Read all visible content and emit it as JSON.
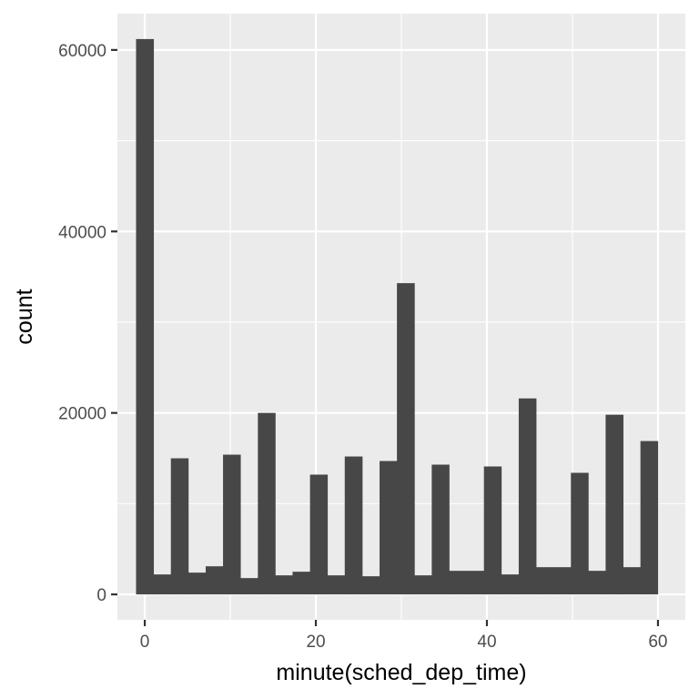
{
  "chart_data": {
    "type": "bar",
    "title": "",
    "xlabel": "minute(sched_dep_time)",
    "ylabel": "count",
    "xlim": [
      -3.2,
      63.2
    ],
    "ylim": [
      -2800,
      64000
    ],
    "x_ticks": [
      0,
      20,
      40,
      60
    ],
    "y_ticks": [
      0,
      20000,
      40000,
      60000
    ],
    "grid": true,
    "bin_width": 2.03,
    "bins": [
      {
        "x_start": -1.02,
        "x_end": 1.02,
        "count": 61200
      },
      {
        "x_start": 1.02,
        "x_end": 3.05,
        "count": 2200
      },
      {
        "x_start": 3.05,
        "x_end": 5.08,
        "count": 15000
      },
      {
        "x_start": 5.08,
        "x_end": 7.12,
        "count": 2400
      },
      {
        "x_start": 7.12,
        "x_end": 9.15,
        "count": 3100
      },
      {
        "x_start": 9.15,
        "x_end": 11.18,
        "count": 15400
      },
      {
        "x_start": 11.18,
        "x_end": 13.22,
        "count": 1800
      },
      {
        "x_start": 13.22,
        "x_end": 15.25,
        "count": 20000
      },
      {
        "x_start": 15.25,
        "x_end": 17.28,
        "count": 2100
      },
      {
        "x_start": 17.28,
        "x_end": 19.32,
        "count": 2500
      },
      {
        "x_start": 19.32,
        "x_end": 21.35,
        "count": 13200
      },
      {
        "x_start": 21.35,
        "x_end": 23.38,
        "count": 2100
      },
      {
        "x_start": 23.38,
        "x_end": 25.42,
        "count": 15200
      },
      {
        "x_start": 25.42,
        "x_end": 27.45,
        "count": 2000
      },
      {
        "x_start": 27.45,
        "x_end": 29.48,
        "count": 14700
      },
      {
        "x_start": 29.48,
        "x_end": 31.52,
        "count": 34300
      },
      {
        "x_start": 31.52,
        "x_end": 33.55,
        "count": 2100
      },
      {
        "x_start": 33.55,
        "x_end": 35.58,
        "count": 14300
      },
      {
        "x_start": 35.58,
        "x_end": 37.62,
        "count": 2600
      },
      {
        "x_start": 37.62,
        "x_end": 39.65,
        "count": 2600
      },
      {
        "x_start": 39.65,
        "x_end": 41.68,
        "count": 14100
      },
      {
        "x_start": 41.68,
        "x_end": 43.72,
        "count": 2200
      },
      {
        "x_start": 43.72,
        "x_end": 45.75,
        "count": 21600
      },
      {
        "x_start": 45.75,
        "x_end": 47.78,
        "count": 3000
      },
      {
        "x_start": 47.78,
        "x_end": 49.82,
        "count": 3000
      },
      {
        "x_start": 49.82,
        "x_end": 51.85,
        "count": 13400
      },
      {
        "x_start": 51.85,
        "x_end": 53.88,
        "count": 2600
      },
      {
        "x_start": 53.88,
        "x_end": 55.92,
        "count": 19800
      },
      {
        "x_start": 55.92,
        "x_end": 57.95,
        "count": 3000
      },
      {
        "x_start": 57.95,
        "x_end": 59.98,
        "count": 16900
      }
    ],
    "colors": {
      "panel_background": "#ebebeb",
      "grid": "#ffffff",
      "bar_fill": "#474747"
    }
  }
}
